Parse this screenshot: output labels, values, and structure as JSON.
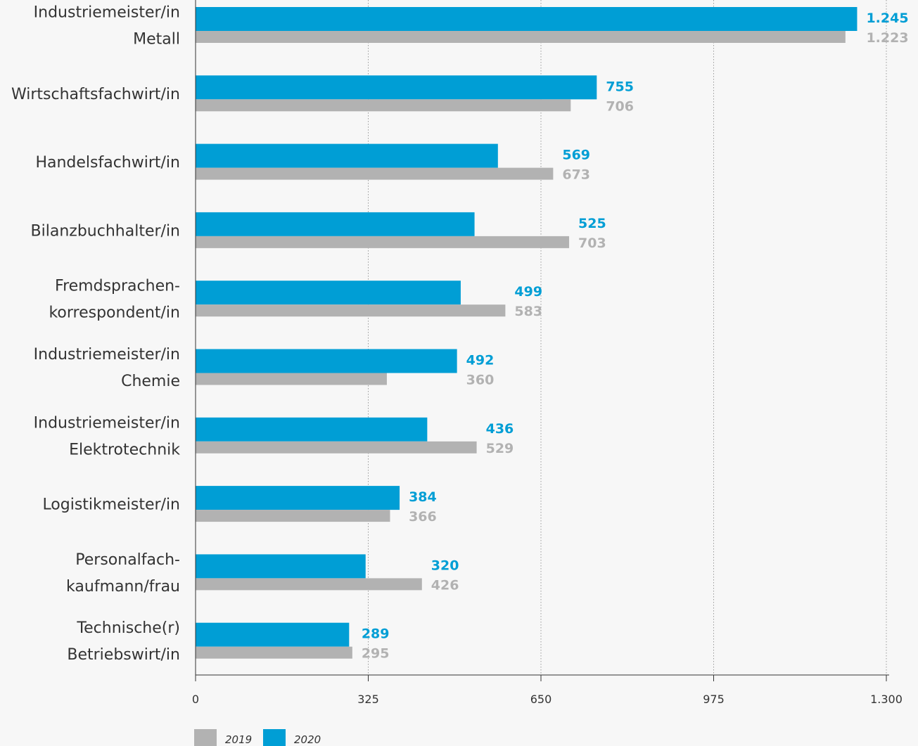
{
  "chart_data": {
    "type": "bar",
    "orientation": "horizontal",
    "categories": [
      [
        "Industriemeister/in",
        "Metall"
      ],
      [
        "Wirtschaftsfachwirt/in"
      ],
      [
        "Handelsfachwirt/in"
      ],
      [
        "Bilanzbuchhalter/in"
      ],
      [
        "Fremdsprachen-",
        "korrespondent/in"
      ],
      [
        "Industriemeister/in",
        "Chemie"
      ],
      [
        "Industriemeister/in",
        "Elektrotechnik"
      ],
      [
        "Logistikmeister/in"
      ],
      [
        "Personalfach-",
        "kaufmann/frau"
      ],
      [
        "Technische(r)",
        "Betriebswirt/in"
      ]
    ],
    "series": [
      {
        "name": "2020",
        "color": "#009ed5",
        "values": [
          1245,
          755,
          569,
          525,
          499,
          492,
          436,
          384,
          320,
          289
        ],
        "labels": [
          "1.245",
          "755",
          "569",
          "525",
          "499",
          "492",
          "436",
          "384",
          "320",
          "289"
        ]
      },
      {
        "name": "2019",
        "color": "#b2b2b2",
        "values": [
          1223,
          706,
          673,
          703,
          583,
          360,
          529,
          366,
          426,
          295
        ],
        "labels": [
          "1.223",
          "706",
          "673",
          "703",
          "583",
          "360",
          "529",
          "366",
          "426",
          "295"
        ]
      }
    ],
    "xlim": [
      0,
      1300
    ],
    "ticks": [
      0,
      325,
      650,
      975,
      1300
    ],
    "tick_labels": [
      "0",
      "325",
      "650",
      "975",
      "1.300"
    ],
    "grid": true,
    "legend_position": "bottom-left",
    "legend_order": [
      "2019",
      "2020"
    ],
    "axis_color": "#333333",
    "grid_color": "#9a9a9a"
  }
}
